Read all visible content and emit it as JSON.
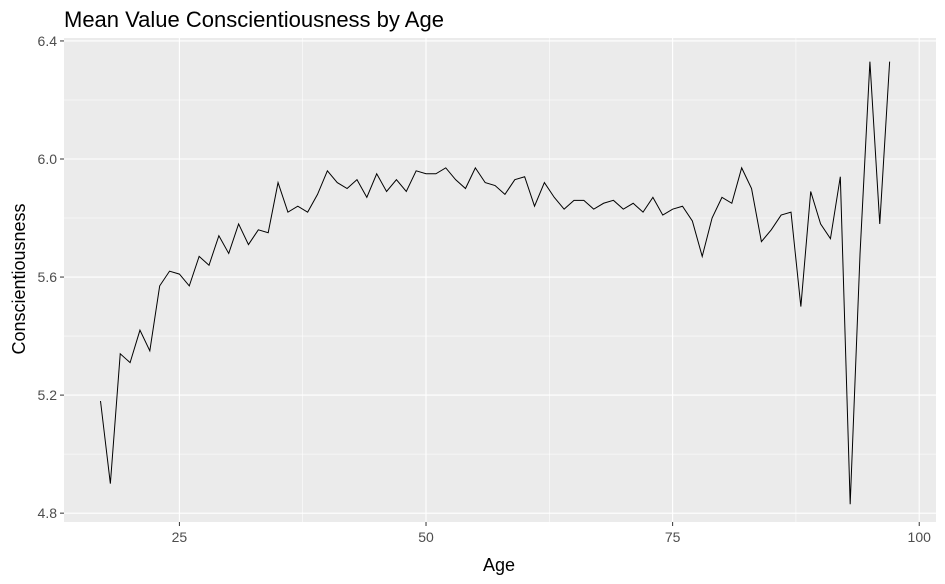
{
  "chart_data": {
    "type": "line",
    "title": "Mean Value Conscientiousness by Age",
    "xlabel": "Age",
    "ylabel": "Conscientiousness",
    "xlim": [
      13.3,
      101.7
    ],
    "ylim": [
      4.77,
      6.41
    ],
    "xticks": [
      25,
      50,
      75,
      100
    ],
    "yticks": [
      4.8,
      5.2,
      5.6,
      6.0,
      6.4
    ],
    "ytick_labels": [
      "4.8",
      "5.2",
      "5.6",
      "6.0",
      "6.4"
    ],
    "grid": true,
    "background": "#ebebeb",
    "line_color": "#000000",
    "x": [
      17,
      18,
      19,
      20,
      21,
      22,
      23,
      24,
      25,
      26,
      27,
      28,
      29,
      30,
      31,
      32,
      33,
      34,
      35,
      36,
      37,
      38,
      39,
      40,
      41,
      42,
      43,
      44,
      45,
      46,
      47,
      48,
      49,
      50,
      51,
      52,
      53,
      54,
      55,
      56,
      57,
      58,
      59,
      60,
      61,
      62,
      63,
      64,
      65,
      66,
      67,
      68,
      69,
      70,
      71,
      72,
      73,
      74,
      75,
      76,
      77,
      78,
      79,
      80,
      81,
      82,
      83,
      84,
      85,
      86,
      87,
      88,
      89,
      90,
      91,
      92,
      93,
      94,
      95,
      96,
      97
    ],
    "y": [
      5.18,
      4.9,
      5.34,
      5.31,
      5.42,
      5.35,
      5.57,
      5.62,
      5.61,
      5.57,
      5.67,
      5.64,
      5.74,
      5.68,
      5.78,
      5.71,
      5.76,
      5.75,
      5.92,
      5.82,
      5.84,
      5.82,
      5.88,
      5.96,
      5.92,
      5.9,
      5.93,
      5.87,
      5.95,
      5.89,
      5.93,
      5.89,
      5.96,
      5.95,
      5.95,
      5.97,
      5.93,
      5.9,
      5.97,
      5.92,
      5.91,
      5.88,
      5.93,
      5.94,
      5.84,
      5.92,
      5.87,
      5.83,
      5.86,
      5.86,
      5.83,
      5.85,
      5.86,
      5.83,
      5.85,
      5.82,
      5.87,
      5.81,
      5.83,
      5.84,
      5.79,
      5.67,
      5.8,
      5.87,
      5.85,
      5.97,
      5.9,
      5.72,
      5.76,
      5.81,
      5.82,
      5.5,
      5.89,
      5.78,
      5.73,
      5.94,
      4.83,
      5.68,
      6.33,
      5.78,
      6.33
    ]
  }
}
